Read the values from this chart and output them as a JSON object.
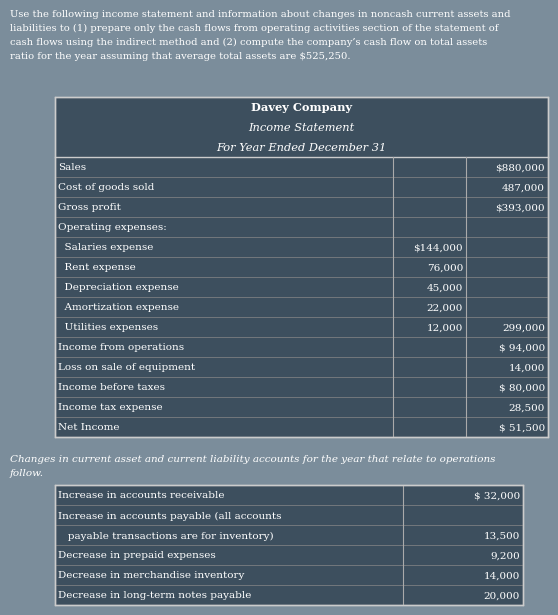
{
  "bg_color": "#7b8d9b",
  "table_bg": "#3d4f5e",
  "text_color": "#ffffff",
  "header_text_line1": "Use the following income statement and information about changes in noncash current assets and",
  "header_text_line2": "liabilities to (1) prepare only the cash flows from operating activities section of the statement of",
  "header_text_line3": "cash flows using the indirect method and (2) compute the company’s cash flow on total assets",
  "header_text_line4": "ratio for the year assuming that average total assets are $525,250.",
  "table_title": [
    "Davey Company",
    "Income Statement",
    "For Year Ended December 31"
  ],
  "income_rows": [
    {
      "label": "Sales",
      "col1": "",
      "col2": "$880,000"
    },
    {
      "label": "Cost of goods sold",
      "col1": "",
      "col2": "487,000"
    },
    {
      "label": "Gross profit",
      "col1": "",
      "col2": "$393,000"
    },
    {
      "label": "Operating expenses:",
      "col1": "",
      "col2": ""
    },
    {
      "label": "  Salaries expense",
      "col1": "$144,000",
      "col2": ""
    },
    {
      "label": "  Rent expense",
      "col1": "76,000",
      "col2": ""
    },
    {
      "label": "  Depreciation expense",
      "col1": "45,000",
      "col2": ""
    },
    {
      "label": "  Amortization expense",
      "col1": "22,000",
      "col2": ""
    },
    {
      "label": "  Utilities expenses",
      "col1": "12,000",
      "col2": "299,000"
    },
    {
      "label": "Income from operations",
      "col1": "",
      "col2": "$ 94,000"
    },
    {
      "label": "Loss on sale of equipment",
      "col1": "",
      "col2": "14,000"
    },
    {
      "label": "Income before taxes",
      "col1": "",
      "col2": "$ 80,000"
    },
    {
      "label": "Income tax expense",
      "col1": "",
      "col2": "28,500"
    },
    {
      "label": "Net Income",
      "col1": "",
      "col2": "$ 51,500"
    }
  ],
  "changes_header_line1": "Changes in current asset and current liability accounts for the year that relate to operations",
  "changes_header_line2": "follow.",
  "changes_rows": [
    {
      "label": "Increase in accounts receivable",
      "col1": "$ 32,000"
    },
    {
      "label": "Increase in accounts payable (all accounts",
      "col1": ""
    },
    {
      "label": "   payable transactions are for inventory)",
      "col1": "13,500"
    },
    {
      "label": "Decrease in prepaid expenses",
      "col1": "9,200"
    },
    {
      "label": "Decrease in merchandise inventory",
      "col1": "14,000"
    },
    {
      "label": "Decrease in long-term notes payable",
      "col1": "20,000"
    }
  ]
}
